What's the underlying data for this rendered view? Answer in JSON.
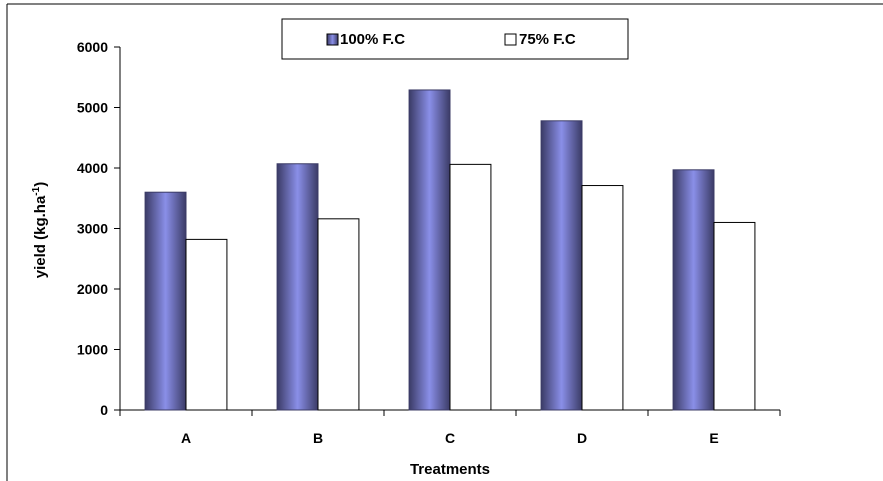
{
  "chart_data": {
    "type": "bar",
    "categories": [
      "A",
      "B",
      "C",
      "D",
      "E"
    ],
    "series": [
      {
        "name": "100% F.C",
        "values": [
          3600,
          4070,
          5290,
          4780,
          3970
        ],
        "color": "#8a8fe8",
        "edge": "#3b3b66"
      },
      {
        "name": "75% F.C",
        "values": [
          2820,
          3160,
          4060,
          3710,
          3100
        ],
        "color": "#ffffff",
        "edge": "#000000"
      }
    ],
    "xlabel": "Treatments",
    "ylabel_main": "yield (kg.ha",
    "ylabel_sup": "-1",
    "ylabel_close": ")",
    "ylim": [
      0,
      6000
    ],
    "yticks": [
      0,
      1000,
      2000,
      3000,
      4000,
      5000,
      6000
    ],
    "ytick_labels": [
      "0",
      "1000",
      "2000",
      "3000",
      "4000",
      "5000",
      "6000"
    ],
    "grid": false,
    "legend_position": "top-center"
  }
}
